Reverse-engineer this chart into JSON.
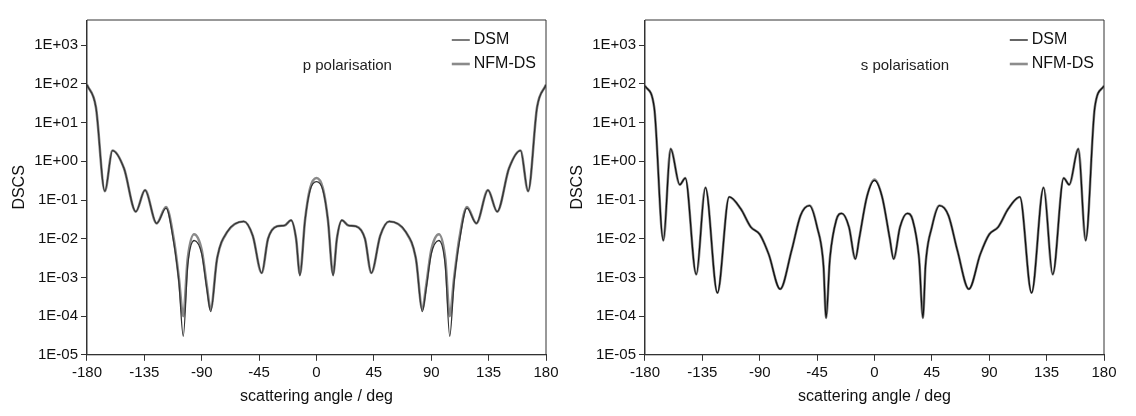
{
  "chart_data": [
    {
      "type": "line",
      "xlabel": "scattering angle / deg",
      "ylabel": "DSCS",
      "annotations": [
        "p polarisation"
      ],
      "log": "y",
      "grid": false,
      "legend": "top right",
      "marker": "none",
      "line_style": "solid",
      "xlim": [
        -180,
        180
      ],
      "xticks": [
        -180,
        -135,
        -90,
        -45,
        0,
        45,
        90,
        135,
        180
      ],
      "ylim": [
        1e-05,
        4500
      ],
      "yticks": [
        {
          "value": 1e-05,
          "label": "1E-05"
        },
        {
          "value": 0.0001,
          "label": "1E-04"
        },
        {
          "value": 0.001,
          "label": "1E-03"
        },
        {
          "value": 0.01,
          "label": "1E-02"
        },
        {
          "value": 0.1,
          "label": "1E-01"
        },
        {
          "value": 1,
          "label": "1E+00"
        },
        {
          "value": 10,
          "label": "1E+01"
        },
        {
          "value": 100,
          "label": "1E+02"
        },
        {
          "value": 1000,
          "label": "1E+03"
        }
      ],
      "x": [
        -180,
        -173,
        -166,
        -160,
        -151,
        -141.7,
        -134.5,
        -125.4,
        -118,
        -112,
        -108,
        -104.5,
        -101,
        -96,
        -90,
        -86,
        -83,
        -78,
        -70,
        -57,
        -50,
        -43,
        -38,
        -31,
        -25,
        -20,
        -16,
        -13,
        -9,
        -5,
        0,
        5,
        9,
        13,
        16,
        20,
        25,
        31,
        38,
        43,
        50,
        57,
        70,
        78,
        83,
        86,
        90,
        96,
        101,
        104.5,
        108,
        112,
        118,
        125.4,
        134.5,
        141.7,
        151,
        160,
        166,
        173,
        180
      ],
      "series": [
        {
          "name": "DSM",
          "color": "#333333",
          "values": [
            95,
            25,
            0.17,
            1.9,
            0.66,
            0.05,
            0.18,
            0.025,
            0.062,
            0.008,
            0.0008,
            3e-05,
            0.002,
            0.009,
            0.004,
            0.0005,
            0.00013,
            0.003,
            0.015,
            0.028,
            0.012,
            0.0013,
            0.01,
            0.021,
            0.022,
            0.03,
            0.01,
            0.0011,
            0.03,
            0.18,
            0.3,
            0.18,
            0.03,
            0.0011,
            0.01,
            0.03,
            0.022,
            0.021,
            0.01,
            0.0013,
            0.012,
            0.028,
            0.015,
            0.003,
            0.00013,
            0.0005,
            0.004,
            0.009,
            0.002,
            3e-05,
            0.0008,
            0.008,
            0.062,
            0.025,
            0.18,
            0.05,
            0.66,
            1.9,
            0.17,
            25,
            95
          ]
        },
        {
          "name": "NFM-DS",
          "color": "#8a8a8a",
          "values": [
            95,
            25,
            0.17,
            1.9,
            0.66,
            0.05,
            0.18,
            0.025,
            0.066,
            0.01,
            0.001,
            0.0001,
            0.003,
            0.013,
            0.005,
            0.0006,
            0.00015,
            0.003,
            0.015,
            0.028,
            0.012,
            0.0013,
            0.01,
            0.021,
            0.022,
            0.03,
            0.01,
            0.0012,
            0.03,
            0.2,
            0.37,
            0.2,
            0.03,
            0.0012,
            0.01,
            0.03,
            0.022,
            0.021,
            0.01,
            0.0013,
            0.012,
            0.028,
            0.015,
            0.003,
            0.00015,
            0.0006,
            0.005,
            0.013,
            0.003,
            0.0001,
            0.001,
            0.01,
            0.066,
            0.025,
            0.18,
            0.05,
            0.66,
            1.9,
            0.17,
            25,
            95
          ]
        }
      ]
    },
    {
      "type": "line",
      "xlabel": "scattering angle / deg",
      "ylabel": "DSCS",
      "annotations": [
        "s polarisation"
      ],
      "log": "y",
      "grid": false,
      "legend": "top right",
      "marker": "none",
      "line_style": "solid",
      "xlim": [
        -180,
        180
      ],
      "xticks": [
        -180,
        -135,
        -90,
        -45,
        0,
        45,
        90,
        135,
        180
      ],
      "ylim": [
        1e-05,
        4500
      ],
      "yticks": [
        {
          "value": 1e-05,
          "label": "1E-05"
        },
        {
          "value": 0.0001,
          "label": "1E-04"
        },
        {
          "value": 0.001,
          "label": "1E-03"
        },
        {
          "value": 0.01,
          "label": "1E-02"
        },
        {
          "value": 0.1,
          "label": "1E-01"
        },
        {
          "value": 1,
          "label": "1E+00"
        },
        {
          "value": 10,
          "label": "1E+01"
        },
        {
          "value": 100,
          "label": "1E+02"
        },
        {
          "value": 1000,
          "label": "1E+03"
        }
      ],
      "x": [
        -180,
        -172.8,
        -165.6,
        -159.9,
        -152.7,
        -148.4,
        -139.8,
        -132.6,
        -123.2,
        -114,
        -105,
        -97,
        -90,
        -83,
        -74,
        -65,
        -58,
        -51,
        -45,
        -40,
        -38,
        -35,
        -30,
        -25.6,
        -20,
        -15,
        -12,
        -6,
        0,
        6,
        12,
        15,
        20,
        25.6,
        30,
        35,
        38,
        40,
        45,
        51,
        58,
        65,
        74,
        83,
        90,
        97,
        105,
        114,
        123.2,
        132.6,
        139.8,
        148.4,
        152.7,
        159.9,
        165.6,
        172.8,
        180
      ],
      "series": [
        {
          "name": "DSM",
          "color": "#111111",
          "values": [
            90,
            25,
            0.009,
            2.1,
            0.25,
            0.37,
            0.0012,
            0.21,
            0.0004,
            0.12,
            0.06,
            0.02,
            0.013,
            0.004,
            0.0005,
            0.005,
            0.04,
            0.072,
            0.02,
            0.002,
            9e-05,
            0.003,
            0.03,
            0.045,
            0.02,
            0.003,
            0.01,
            0.12,
            0.32,
            0.12,
            0.01,
            0.003,
            0.02,
            0.045,
            0.03,
            0.003,
            9e-05,
            0.002,
            0.02,
            0.072,
            0.04,
            0.005,
            0.0005,
            0.004,
            0.013,
            0.02,
            0.06,
            0.12,
            0.0004,
            0.21,
            0.0012,
            0.37,
            0.25,
            2.1,
            0.009,
            25,
            90
          ]
        },
        {
          "name": "NFM-DS",
          "color": "#8c8c8c",
          "values": [
            90,
            25,
            0.009,
            2.1,
            0.25,
            0.37,
            0.0012,
            0.21,
            0.0004,
            0.12,
            0.06,
            0.02,
            0.013,
            0.004,
            0.0005,
            0.005,
            0.04,
            0.072,
            0.02,
            0.002,
            9e-05,
            0.003,
            0.03,
            0.045,
            0.02,
            0.003,
            0.01,
            0.12,
            0.34,
            0.12,
            0.01,
            0.003,
            0.02,
            0.045,
            0.03,
            0.003,
            9e-05,
            0.002,
            0.02,
            0.072,
            0.04,
            0.005,
            0.0005,
            0.004,
            0.013,
            0.02,
            0.06,
            0.12,
            0.0004,
            0.21,
            0.0012,
            0.37,
            0.25,
            2.1,
            0.009,
            25,
            90
          ]
        }
      ]
    }
  ]
}
